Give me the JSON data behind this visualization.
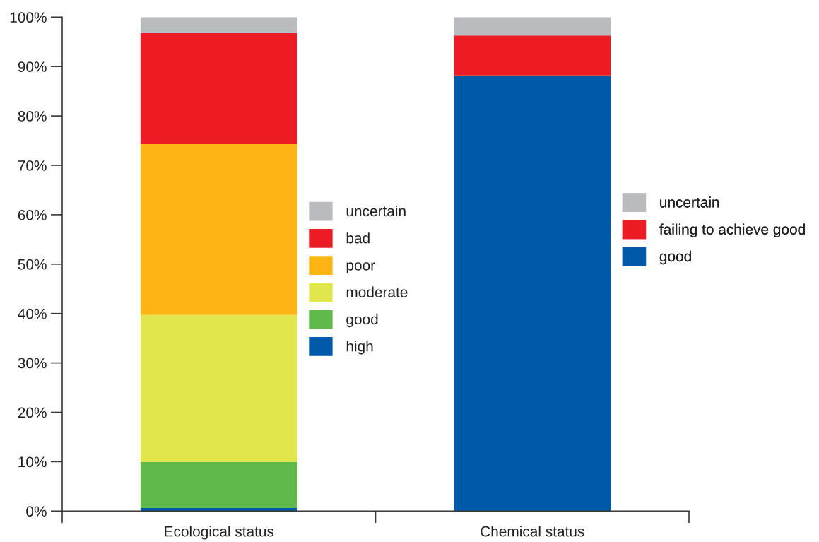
{
  "chart_data": {
    "type": "bar",
    "stacked": true,
    "categories": [
      "Ecological status",
      "Chemical status"
    ],
    "series": [
      {
        "name": "high",
        "color": "#0058a8",
        "values": [
          0.6,
          null
        ]
      },
      {
        "name": "good",
        "color": "#5fba4b",
        "values": [
          9.3,
          null
        ]
      },
      {
        "name": "moderate",
        "color": "#e2e64e",
        "values": [
          29.8,
          null
        ]
      },
      {
        "name": "poor",
        "color": "#fdb515",
        "values": [
          34.6,
          null
        ]
      },
      {
        "name": "bad",
        "color": "#ec1c24",
        "values": [
          22.5,
          null
        ]
      },
      {
        "name": "uncertain",
        "color": "#b9bbbe",
        "values": [
          3.2,
          null
        ]
      },
      {
        "name": "good",
        "color": "#0058a8",
        "values": [
          null,
          88.2
        ]
      },
      {
        "name": "failing to achieve good",
        "color": "#ec1c24",
        "values": [
          null,
          8.1
        ]
      },
      {
        "name": "uncertain",
        "color": "#b9bbbe",
        "values": [
          null,
          3.7
        ]
      }
    ],
    "ylim": [
      0,
      100
    ],
    "yticks": [
      {
        "value": 0,
        "label": "0%"
      },
      {
        "value": 10,
        "label": "10%"
      },
      {
        "value": 20,
        "label": "20%"
      },
      {
        "value": 30,
        "label": "30%"
      },
      {
        "value": 40,
        "label": "40%"
      },
      {
        "value": 50,
        "label": "50%"
      },
      {
        "value": 60,
        "label": "60%"
      },
      {
        "value": 70,
        "label": "70%"
      },
      {
        "value": 80,
        "label": "80%"
      },
      {
        "value": 90,
        "label": "90%"
      },
      {
        "value": 100,
        "label": "100%"
      }
    ],
    "legend": "right"
  }
}
